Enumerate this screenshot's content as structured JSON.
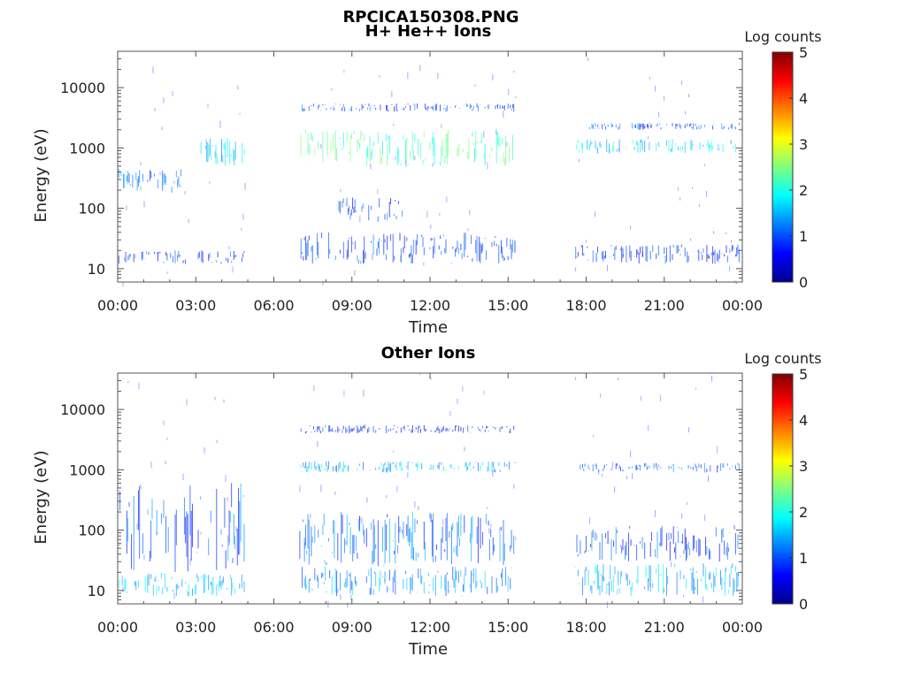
{
  "figure_title": "RPCICA150308.PNG",
  "chart_data": [
    {
      "type": "heatmap",
      "title": "H+ He++ Ions",
      "xlabel": "Time",
      "ylabel": "Energy (eV)",
      "x_ticks": [
        "00:00",
        "03:00",
        "06:00",
        "09:00",
        "12:00",
        "15:00",
        "18:00",
        "21:00",
        "00:00"
      ],
      "x_range_hours": [
        0,
        24
      ],
      "y_scale": "log",
      "y_ticks": [
        "10",
        "100",
        "1000",
        "10000"
      ],
      "y_range": [
        6,
        40000
      ],
      "colorbar": {
        "label": "Log counts",
        "ticks": [
          "0",
          "1",
          "2",
          "3",
          "4",
          "5"
        ],
        "range": [
          0,
          5
        ],
        "colormap": "jet"
      },
      "grid": false,
      "data_intervals_hours": [
        [
          0,
          4.9
        ],
        [
          7.0,
          15.3
        ],
        [
          17.6,
          23.9
        ]
      ],
      "bands": [
        {
          "t": [
            0,
            2.6
          ],
          "e": [
            180,
            450
          ],
          "level": 1.2
        },
        {
          "t": [
            0,
            4.9
          ],
          "e": [
            12,
            20
          ],
          "level": 0.9
        },
        {
          "t": [
            3.2,
            4.9
          ],
          "e": [
            500,
            1500
          ],
          "level": 1.7
        },
        {
          "t": [
            7.0,
            15.3
          ],
          "e": [
            500,
            2000
          ],
          "level": 2.2
        },
        {
          "t": [
            7.0,
            15.3
          ],
          "e": [
            4000,
            5500
          ],
          "level": 1.0
        },
        {
          "t": [
            7.0,
            15.3
          ],
          "e": [
            12,
            40
          ],
          "level": 0.9
        },
        {
          "t": [
            8.5,
            11.0
          ],
          "e": [
            60,
            150
          ],
          "level": 0.9
        },
        {
          "t": [
            17.6,
            23.9
          ],
          "e": [
            800,
            1400
          ],
          "level": 1.7
        },
        {
          "t": [
            17.6,
            23.9
          ],
          "e": [
            12,
            25
          ],
          "level": 0.8
        },
        {
          "t": [
            18.0,
            23.9
          ],
          "e": [
            2000,
            2600
          ],
          "level": 1.0
        }
      ]
    },
    {
      "type": "heatmap",
      "title": "Other Ions",
      "xlabel": "Time",
      "ylabel": "Energy (eV)",
      "x_ticks": [
        "00:00",
        "03:00",
        "06:00",
        "09:00",
        "12:00",
        "15:00",
        "18:00",
        "21:00",
        "00:00"
      ],
      "x_range_hours": [
        0,
        24
      ],
      "y_scale": "log",
      "y_ticks": [
        "10",
        "100",
        "1000",
        "10000"
      ],
      "y_range": [
        6,
        40000
      ],
      "colorbar": {
        "label": "Log counts",
        "ticks": [
          "0",
          "1",
          "2",
          "3",
          "4",
          "5"
        ],
        "range": [
          0,
          5
        ],
        "colormap": "jet"
      },
      "grid": false,
      "data_intervals_hours": [
        [
          0,
          4.9
        ],
        [
          7.0,
          15.3
        ],
        [
          17.6,
          23.9
        ]
      ],
      "bands": [
        {
          "t": [
            0,
            4.9
          ],
          "e": [
            20,
            600
          ],
          "level": 1.1
        },
        {
          "t": [
            0,
            4.9
          ],
          "e": [
            8,
            20
          ],
          "level": 1.6
        },
        {
          "t": [
            7.0,
            15.3
          ],
          "e": [
            25,
            200
          ],
          "level": 1.1
        },
        {
          "t": [
            7.0,
            15.3
          ],
          "e": [
            8,
            25
          ],
          "level": 1.3
        },
        {
          "t": [
            7.0,
            15.3
          ],
          "e": [
            900,
            1400
          ],
          "level": 1.5
        },
        {
          "t": [
            7.0,
            15.3
          ],
          "e": [
            4000,
            5500
          ],
          "level": 0.7
        },
        {
          "t": [
            17.6,
            23.9
          ],
          "e": [
            8,
            30
          ],
          "level": 1.6
        },
        {
          "t": [
            17.6,
            23.9
          ],
          "e": [
            30,
            120
          ],
          "level": 0.9
        },
        {
          "t": [
            17.6,
            23.9
          ],
          "e": [
            900,
            1300
          ],
          "level": 1.0
        }
      ]
    }
  ]
}
